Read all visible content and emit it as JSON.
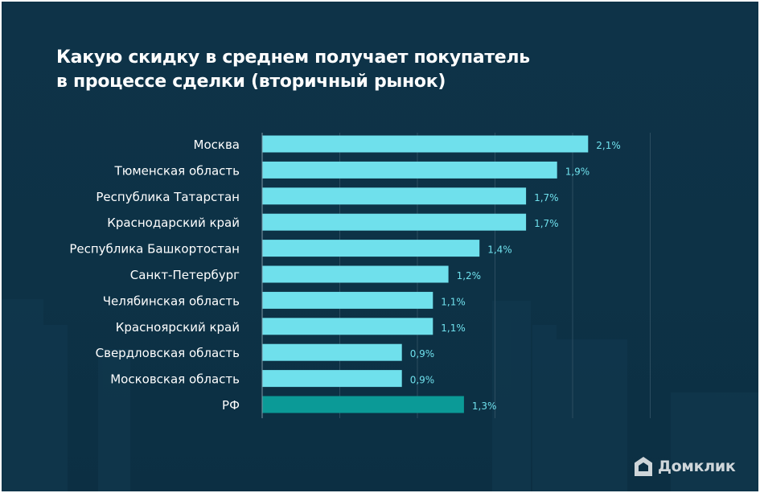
{
  "title_lines": [
    "Какую скидку в среднем получает покупатель",
    "в процессе сделки (вторичный рынок)"
  ],
  "brand": {
    "name": "Домклик",
    "logo_icon": "house-icon"
  },
  "colors": {
    "background": "#0e3348",
    "bar": "#6fe0ec",
    "bar_highlight": "#0b9a97",
    "value_label": "#6fe0ec",
    "category_label": "#ffffff",
    "gridline": "#2c4d60"
  },
  "chart_data": {
    "type": "bar",
    "orientation": "horizontal",
    "categories": [
      "Москва",
      "Тюменская область",
      "Республика Татарстан",
      "Краснодарский край",
      "Республика Башкортостан",
      "Санкт-Петербург",
      "Челябинская область",
      "Красноярский край",
      "Свердловская область",
      "Московская область",
      "РФ"
    ],
    "values": [
      2.1,
      1.9,
      1.7,
      1.7,
      1.4,
      1.2,
      1.1,
      1.1,
      0.9,
      0.9,
      1.3
    ],
    "value_labels": [
      "2,1%",
      "1,9%",
      "1,7%",
      "1,7%",
      "1,4%",
      "1,2%",
      "1,1%",
      "1,1%",
      "0,9%",
      "0,9%",
      "1,3%"
    ],
    "highlighted_category": "РФ",
    "xlim": [
      0,
      2.5
    ],
    "grid": true,
    "x_tick_labels_visible": false,
    "legend": "none"
  }
}
